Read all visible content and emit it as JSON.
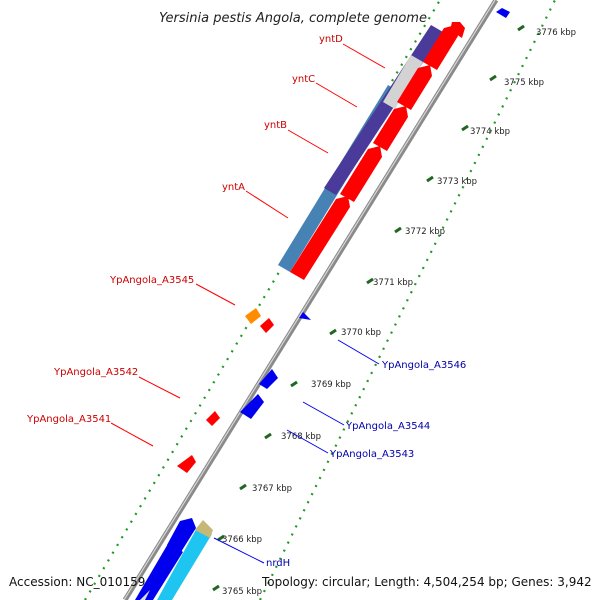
{
  "title": "Yersinia pestis Angola, complete genome",
  "footer": {
    "accession": "Accession: NC_010159",
    "summary": "Topology: circular; Length: 4,504,254 bp; Genes: 3,942"
  },
  "colors": {
    "forward_gene": "#ff0000",
    "reverse_gene": "#0000ee",
    "backbone": "#888888",
    "tick": "#227722",
    "forward_label": "#cc0000",
    "reverse_label": "#0000aa"
  },
  "scale_ticks": [
    "3765 kbp",
    "3766 kbp",
    "3767 kbp",
    "3768 kbp",
    "3769 kbp",
    "3770 kbp",
    "3771 kbp",
    "3772 kbp",
    "3773 kbp",
    "3774 kbp",
    "3775 kbp",
    "3776 kbp"
  ],
  "forward_labels": [
    "yntD",
    "yntC",
    "yntB",
    "yntA",
    "YpAngola_A3545",
    "YpAngola_A3542",
    "YpAngola_A3541"
  ],
  "reverse_labels": [
    "YpAngola_A3546",
    "YpAngola_A3544",
    "YpAngola_A3543",
    "nrdH"
  ]
}
